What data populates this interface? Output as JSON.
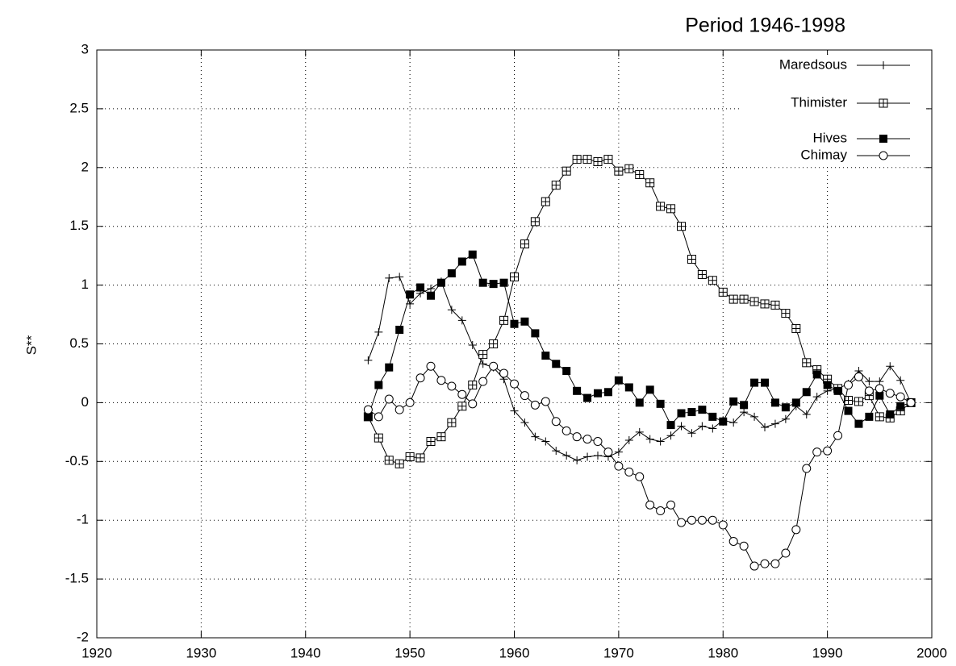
{
  "chart_data": {
    "type": "line",
    "title": "Period 1946-1998",
    "y_label": "S**",
    "x": [
      1946,
      1947,
      1948,
      1949,
      1950,
      1951,
      1952,
      1953,
      1954,
      1955,
      1956,
      1957,
      1958,
      1959,
      1960,
      1961,
      1962,
      1963,
      1964,
      1965,
      1966,
      1967,
      1968,
      1969,
      1970,
      1971,
      1972,
      1973,
      1974,
      1975,
      1976,
      1977,
      1978,
      1979,
      1980,
      1981,
      1982,
      1983,
      1984,
      1985,
      1986,
      1987,
      1988,
      1989,
      1990,
      1991,
      1992,
      1993,
      1994,
      1995,
      1996,
      1997,
      1998
    ],
    "series": [
      {
        "name": "Maredsous",
        "color": "#000000",
        "marker": "plus",
        "values": [
          0.36,
          0.6,
          1.06,
          1.07,
          0.84,
          0.93,
          0.97,
          1.03,
          0.79,
          0.7,
          0.49,
          0.33,
          0.3,
          0.2,
          -0.07,
          -0.17,
          -0.29,
          -0.33,
          -0.41,
          -0.45,
          -0.49,
          -0.46,
          -0.45,
          -0.46,
          -0.42,
          -0.32,
          -0.25,
          -0.31,
          -0.33,
          -0.28,
          -0.2,
          -0.26,
          -0.2,
          -0.22,
          -0.15,
          -0.17,
          -0.08,
          -0.12,
          -0.21,
          -0.18,
          -0.14,
          -0.03,
          -0.1,
          0.05,
          0.1,
          0.12,
          0.16,
          0.27,
          0.18,
          0.18,
          0.31,
          0.19,
          0.0
        ]
      },
      {
        "name": "Thimister",
        "color": "#000000",
        "marker": "boxplus",
        "values": [
          -0.12,
          -0.3,
          -0.49,
          -0.52,
          -0.46,
          -0.47,
          -0.33,
          -0.29,
          -0.17,
          -0.03,
          0.15,
          0.41,
          0.5,
          0.7,
          1.07,
          1.35,
          1.54,
          1.71,
          1.85,
          1.97,
          2.07,
          2.07,
          2.05,
          2.07,
          1.97,
          1.99,
          1.94,
          1.87,
          1.67,
          1.65,
          1.5,
          1.22,
          1.09,
          1.04,
          0.94,
          0.88,
          0.88,
          0.86,
          0.84,
          0.83,
          0.76,
          0.63,
          0.34,
          0.28,
          0.2,
          0.12,
          0.02,
          0.01,
          0.06,
          -0.12,
          -0.13,
          -0.07,
          0.0
        ]
      },
      {
        "name": "Hives",
        "color": "#000000",
        "marker": "filledsquare",
        "values": [
          -0.12,
          0.15,
          0.3,
          0.62,
          0.92,
          0.98,
          0.91,
          1.02,
          1.1,
          1.2,
          1.26,
          1.02,
          1.01,
          1.02,
          0.67,
          0.69,
          0.59,
          0.4,
          0.33,
          0.27,
          0.1,
          0.04,
          0.08,
          0.09,
          0.19,
          0.13,
          0.0,
          0.11,
          -0.01,
          -0.19,
          -0.09,
          -0.08,
          -0.06,
          -0.12,
          -0.16,
          0.01,
          -0.02,
          0.17,
          0.17,
          0.0,
          -0.04,
          0.0,
          0.09,
          0.24,
          0.15,
          0.1,
          -0.07,
          -0.18,
          -0.12,
          0.06,
          -0.1,
          -0.03,
          0.0
        ]
      },
      {
        "name": "Chimay",
        "color": "#000000",
        "marker": "circle",
        "values": [
          -0.06,
          -0.12,
          0.03,
          -0.06,
          0.0,
          0.21,
          0.31,
          0.19,
          0.14,
          0.07,
          -0.01,
          0.18,
          0.31,
          0.25,
          0.16,
          0.06,
          -0.02,
          0.01,
          -0.16,
          -0.24,
          -0.29,
          -0.31,
          -0.33,
          -0.42,
          -0.54,
          -0.59,
          -0.63,
          -0.87,
          -0.92,
          -0.87,
          -1.02,
          -1.0,
          -1.0,
          -1.0,
          -1.04,
          -1.18,
          -1.22,
          -1.39,
          -1.37,
          -1.37,
          -1.28,
          -1.08,
          -0.56,
          -0.42,
          -0.41,
          -0.28,
          0.15,
          0.22,
          0.1,
          0.12,
          0.08,
          0.05,
          0.0
        ]
      }
    ],
    "xlim": [
      1920,
      2000
    ],
    "xticks": [
      1920,
      1930,
      1940,
      1950,
      1960,
      1970,
      1980,
      1990,
      2000
    ],
    "ylim": [
      -2,
      3
    ],
    "yticks": [
      -2,
      -1.5,
      -1,
      -0.5,
      0,
      0.5,
      1,
      1.5,
      2,
      2.5,
      3
    ],
    "grid": true,
    "legend": "top-right"
  }
}
